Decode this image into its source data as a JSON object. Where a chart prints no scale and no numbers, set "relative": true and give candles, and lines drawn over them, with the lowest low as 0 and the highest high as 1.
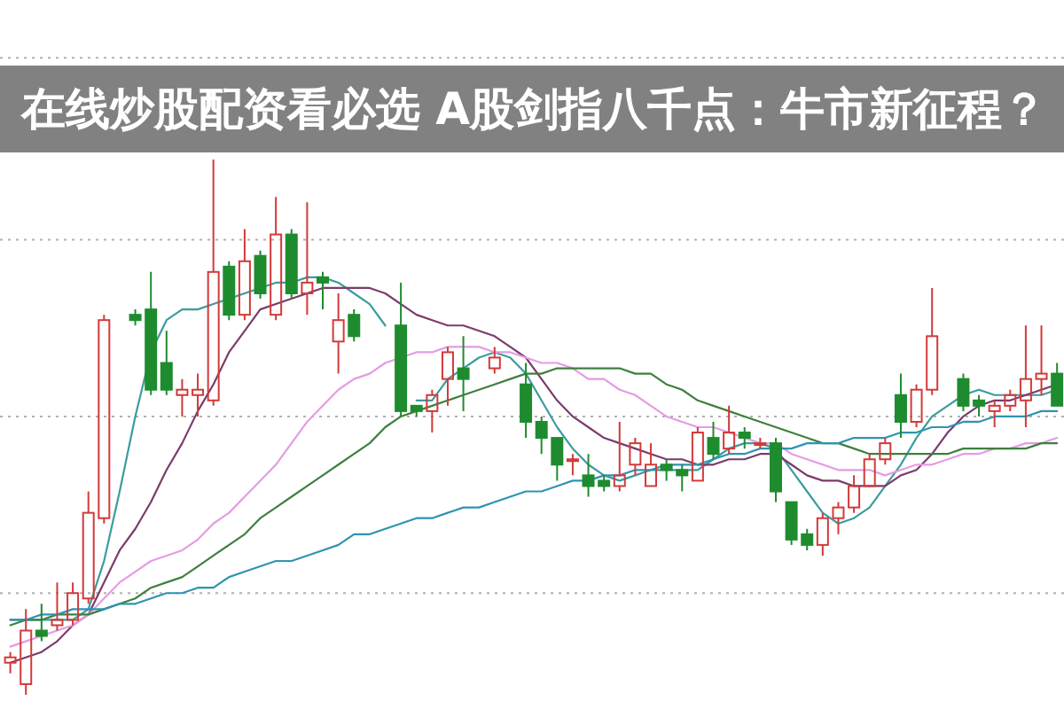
{
  "chart_data": {
    "type": "candlestick",
    "title": "在线炒股配资看必选 A股剑指八千点：牛市新征程？",
    "relative": true,
    "categories": [
      null,
      null,
      null,
      null,
      null,
      null,
      null,
      null,
      null,
      null,
      null,
      null,
      null,
      null,
      null,
      null,
      null,
      null,
      null,
      null,
      null,
      null,
      null,
      null,
      null,
      null,
      null,
      null,
      null,
      null,
      null,
      null,
      null,
      null,
      null,
      null,
      null,
      null,
      null,
      null,
      null,
      null,
      null,
      null,
      null,
      null,
      null,
      null,
      null,
      null,
      null,
      null,
      null,
      null,
      null,
      null,
      null,
      null,
      null,
      null,
      null,
      null,
      null,
      null,
      null,
      null,
      null,
      null
    ],
    "ohlc": [
      [
        0.06,
        0.08,
        0.04,
        0.07
      ],
      [
        0.02,
        0.16,
        0.0,
        0.12
      ],
      [
        0.12,
        0.17,
        0.1,
        0.11
      ],
      [
        0.13,
        0.21,
        0.12,
        0.14
      ],
      [
        0.14,
        0.21,
        0.13,
        0.19
      ],
      [
        0.18,
        0.38,
        0.17,
        0.34
      ],
      [
        0.33,
        0.71,
        0.32,
        0.7
      ],
      null,
      [
        0.71,
        0.72,
        0.69,
        0.7
      ],
      [
        0.72,
        0.79,
        0.56,
        0.57
      ],
      [
        0.62,
        0.68,
        0.56,
        0.57
      ],
      [
        0.56,
        0.59,
        0.52,
        0.57
      ],
      [
        0.56,
        0.6,
        0.52,
        0.57
      ],
      [
        0.55,
        1.0,
        0.54,
        0.79
      ],
      [
        0.8,
        0.81,
        0.7,
        0.71
      ],
      [
        0.71,
        0.87,
        0.7,
        0.81
      ],
      [
        0.82,
        0.83,
        0.74,
        0.75
      ],
      [
        0.71,
        0.93,
        0.7,
        0.86
      ],
      [
        0.86,
        0.87,
        0.74,
        0.75
      ],
      [
        0.75,
        0.92,
        0.71,
        0.77
      ],
      [
        0.78,
        0.79,
        0.72,
        0.77
      ],
      [
        0.66,
        0.75,
        0.6,
        0.7
      ],
      [
        0.71,
        0.72,
        0.66,
        0.67
      ],
      null,
      null,
      [
        0.69,
        0.77,
        0.52,
        0.53
      ],
      [
        0.54,
        0.54,
        0.52,
        0.53
      ],
      [
        0.53,
        0.57,
        0.49,
        0.56
      ],
      [
        0.59,
        0.65,
        0.54,
        0.64
      ],
      [
        0.61,
        0.67,
        0.53,
        0.59
      ],
      null,
      [
        0.61,
        0.65,
        0.6,
        0.63
      ],
      null,
      [
        0.58,
        0.62,
        0.48,
        0.51
      ],
      [
        0.51,
        0.52,
        0.45,
        0.48
      ],
      [
        0.48,
        0.48,
        0.4,
        0.43
      ],
      [
        0.44,
        0.45,
        0.41,
        0.44
      ],
      [
        0.41,
        0.45,
        0.37,
        0.39
      ],
      [
        0.4,
        0.41,
        0.38,
        0.39
      ],
      [
        0.39,
        0.51,
        0.38,
        0.41
      ],
      [
        0.43,
        0.48,
        0.41,
        0.47
      ],
      [
        0.39,
        0.47,
        0.39,
        0.43
      ],
      [
        0.43,
        0.44,
        0.4,
        0.42
      ],
      [
        0.42,
        0.43,
        0.38,
        0.41
      ],
      [
        0.4,
        0.5,
        0.4,
        0.49
      ],
      [
        0.48,
        0.51,
        0.44,
        0.45
      ],
      [
        0.46,
        0.54,
        0.45,
        0.49
      ],
      [
        0.49,
        0.5,
        0.46,
        0.48
      ],
      [
        0.47,
        0.48,
        0.46,
        0.47
      ],
      [
        0.47,
        0.48,
        0.36,
        0.38
      ],
      [
        0.36,
        0.36,
        0.28,
        0.29
      ],
      [
        0.3,
        0.31,
        0.27,
        0.28
      ],
      [
        0.28,
        0.34,
        0.26,
        0.33
      ],
      [
        0.33,
        0.36,
        0.3,
        0.35
      ],
      [
        0.35,
        0.41,
        0.34,
        0.39
      ],
      [
        0.39,
        0.45,
        0.39,
        0.44
      ],
      [
        0.44,
        0.48,
        0.43,
        0.47
      ],
      [
        0.56,
        0.6,
        0.48,
        0.51
      ],
      [
        0.51,
        0.58,
        0.5,
        0.57
      ],
      [
        0.57,
        0.76,
        0.56,
        0.67
      ],
      null,
      [
        0.59,
        0.6,
        0.53,
        0.54
      ],
      [
        0.55,
        0.56,
        0.52,
        0.54
      ],
      [
        0.53,
        0.55,
        0.5,
        0.54
      ],
      [
        0.54,
        0.57,
        0.53,
        0.56
      ],
      [
        0.55,
        0.69,
        0.5,
        0.59
      ],
      [
        0.59,
        0.69,
        0.56,
        0.6
      ],
      [
        0.6,
        0.62,
        0.54,
        0.54
      ]
    ],
    "colors": [
      "#d23a3a",
      "#d23a3a",
      "#1e8c2e",
      "#d23a3a",
      "#d23a3a",
      "#d23a3a",
      "#d23a3a",
      null,
      "#1e8c2e",
      "#1e8c2e",
      "#1e8c2e",
      "#d23a3a",
      "#d23a3a",
      "#d23a3a",
      "#1e8c2e",
      "#d23a3a",
      "#1e8c2e",
      "#d23a3a",
      "#1e8c2e",
      "#d23a3a",
      "#1e8c2e",
      "#d23a3a",
      "#1e8c2e",
      null,
      null,
      "#1e8c2e",
      "#1e8c2e",
      "#d23a3a",
      "#d23a3a",
      "#1e8c2e",
      null,
      "#d23a3a",
      null,
      "#1e8c2e",
      "#1e8c2e",
      "#1e8c2e",
      "#d23a3a",
      "#1e8c2e",
      "#1e8c2e",
      "#d23a3a",
      "#d23a3a",
      "#d23a3a",
      "#1e8c2e",
      "#1e8c2e",
      "#d23a3a",
      "#1e8c2e",
      "#d23a3a",
      "#1e8c2e",
      "#d23a3a",
      "#1e8c2e",
      "#1e8c2e",
      "#1e8c2e",
      "#d23a3a",
      "#d23a3a",
      "#d23a3a",
      "#d23a3a",
      "#d23a3a",
      "#1e8c2e",
      "#d23a3a",
      "#d23a3a",
      null,
      "#1e8c2e",
      "#1e8c2e",
      "#d23a3a",
      "#d23a3a",
      "#d23a3a",
      "#d23a3a",
      "#1e8c2e"
    ],
    "series": [
      {
        "type": "line",
        "color": "#3c9c9c",
        "values": [
          0.14,
          0.14,
          0.14,
          0.14,
          0.14,
          0.16,
          0.25,
          0.38,
          0.52,
          0.64,
          0.7,
          0.72,
          0.72,
          0.73,
          0.74,
          0.75,
          0.76,
          0.77,
          0.77,
          0.78,
          0.78,
          0.77,
          0.75,
          0.73,
          0.69,
          null,
          0.55,
          0.55,
          0.59,
          0.61,
          0.63,
          0.64,
          0.63,
          0.6,
          0.55,
          0.5,
          0.46,
          0.43,
          0.41,
          0.4,
          0.41,
          0.42,
          0.42,
          0.42,
          0.42,
          0.44,
          0.46,
          0.47,
          0.47,
          0.46,
          0.42,
          0.38,
          0.34,
          0.32,
          0.33,
          0.35,
          0.39,
          0.43,
          0.48,
          0.52,
          0.54,
          0.56,
          0.57,
          0.56,
          0.56,
          0.56,
          0.56,
          0.57
        ]
      },
      {
        "type": "line",
        "color": "#7b3b6b",
        "values": [
          0.06,
          0.07,
          0.08,
          0.1,
          0.13,
          0.15,
          0.21,
          0.27,
          0.31,
          0.36,
          0.42,
          0.47,
          0.53,
          0.58,
          0.64,
          0.68,
          0.72,
          0.73,
          0.74,
          0.75,
          0.76,
          0.76,
          0.76,
          0.76,
          0.75,
          0.73,
          0.71,
          0.7,
          0.69,
          0.69,
          0.68,
          0.67,
          0.65,
          0.63,
          0.59,
          0.55,
          0.52,
          0.5,
          0.48,
          0.47,
          0.46,
          0.45,
          0.44,
          0.44,
          0.43,
          0.43,
          0.44,
          0.44,
          0.45,
          0.45,
          0.43,
          0.41,
          0.4,
          0.4,
          0.39,
          0.39,
          0.39,
          0.41,
          0.42,
          0.45,
          0.49,
          0.52,
          0.54,
          0.55,
          0.55,
          0.56,
          0.57,
          0.58
        ]
      },
      {
        "type": "line",
        "color": "#e69be4",
        "values": [
          0.09,
          0.1,
          0.11,
          0.12,
          0.13,
          0.15,
          0.18,
          0.21,
          0.23,
          0.25,
          0.26,
          0.27,
          0.29,
          0.32,
          0.34,
          0.37,
          0.4,
          0.43,
          0.47,
          0.51,
          0.54,
          0.57,
          0.59,
          0.6,
          0.62,
          0.63,
          0.64,
          0.64,
          0.65,
          0.65,
          0.65,
          0.64,
          0.64,
          0.63,
          0.62,
          0.62,
          0.61,
          0.59,
          0.59,
          0.57,
          0.56,
          0.54,
          0.52,
          0.51,
          0.5,
          0.5,
          0.49,
          0.48,
          0.47,
          0.47,
          0.45,
          0.44,
          0.43,
          0.42,
          0.42,
          0.42,
          0.41,
          0.42,
          0.43,
          0.43,
          0.44,
          0.45,
          0.45,
          0.46,
          0.46,
          0.47,
          0.47,
          0.48
        ]
      },
      {
        "type": "line",
        "color": "#3f7f3f",
        "values": [
          0.13,
          0.14,
          0.14,
          0.15,
          0.15,
          0.15,
          0.16,
          0.17,
          0.18,
          0.2,
          0.21,
          0.22,
          0.24,
          0.26,
          0.28,
          0.3,
          0.33,
          0.35,
          0.37,
          0.39,
          0.41,
          0.43,
          0.45,
          0.47,
          0.5,
          0.52,
          0.53,
          0.54,
          0.55,
          0.56,
          0.57,
          0.58,
          0.59,
          0.6,
          0.6,
          0.61,
          0.61,
          0.61,
          0.61,
          0.61,
          0.6,
          0.6,
          0.58,
          0.57,
          0.55,
          0.54,
          0.53,
          0.52,
          0.51,
          0.5,
          0.49,
          0.48,
          0.47,
          0.47,
          0.46,
          0.45,
          0.45,
          0.45,
          0.45,
          0.45,
          0.45,
          0.46,
          0.46,
          0.46,
          0.46,
          0.46,
          0.47,
          0.47
        ]
      },
      {
        "type": "line",
        "color": "#2f93b3",
        "values": [
          0.14,
          0.14,
          0.15,
          0.15,
          0.16,
          0.16,
          0.16,
          0.17,
          0.17,
          0.18,
          0.19,
          0.19,
          0.2,
          0.2,
          0.22,
          0.23,
          0.24,
          0.25,
          0.25,
          0.26,
          0.27,
          0.28,
          0.3,
          0.3,
          0.31,
          0.32,
          0.33,
          0.33,
          0.34,
          0.35,
          0.35,
          0.36,
          0.37,
          0.38,
          0.38,
          0.39,
          0.4,
          0.4,
          0.41,
          0.41,
          0.42,
          0.42,
          0.43,
          0.43,
          0.43,
          0.44,
          0.45,
          0.45,
          0.46,
          0.46,
          0.46,
          0.47,
          0.47,
          0.47,
          0.48,
          0.48,
          0.48,
          0.49,
          0.49,
          0.5,
          0.5,
          0.51,
          0.51,
          0.52,
          0.52,
          0.52,
          0.53,
          0.53
        ]
      }
    ],
    "ref_lines": [
      {
        "axis": "y",
        "value": 0.19,
        "line_style": "dotted",
        "color": "#b0b0b0"
      },
      {
        "axis": "y",
        "value": 0.52,
        "line_style": "dotted",
        "color": "#b0b0b0"
      },
      {
        "axis": "y",
        "value": 0.85,
        "line_style": "dotted",
        "color": "#b0b0b0"
      },
      {
        "axis": "y",
        "value": 1.19,
        "line_style": "dotted",
        "color": "#b0b0b0"
      }
    ]
  }
}
